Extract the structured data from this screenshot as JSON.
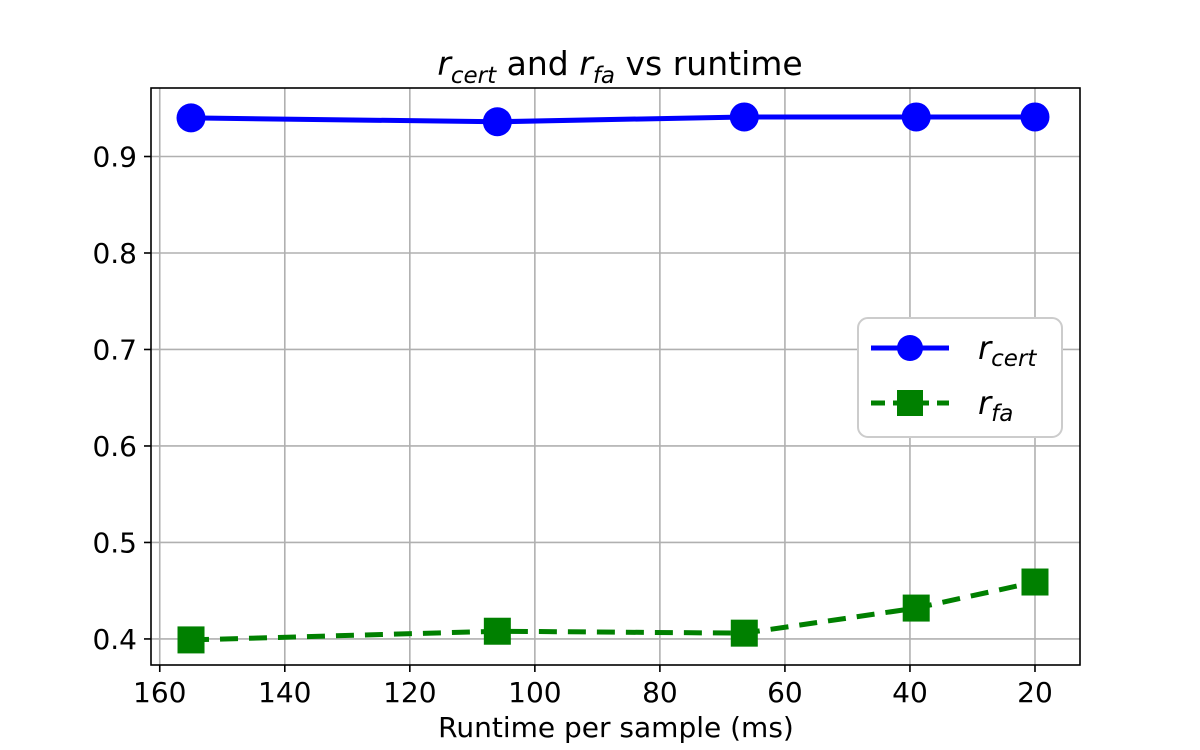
{
  "figure": {
    "background": "#ffffff"
  },
  "chart_data": {
    "type": "line",
    "title": "r_cert and r_fa vs runtime",
    "title_segments": [
      {
        "text": "r",
        "italic": true,
        "sub": false
      },
      {
        "text": "cert",
        "italic": true,
        "sub": true
      },
      {
        "text": " and ",
        "italic": false,
        "sub": false
      },
      {
        "text": "r",
        "italic": true,
        "sub": false
      },
      {
        "text": "fa",
        "italic": true,
        "sub": true
      },
      {
        "text": " vs runtime",
        "italic": false,
        "sub": false
      }
    ],
    "xlabel": "Runtime per sample (ms)",
    "ylabel": "",
    "x": [
      155,
      106,
      66.5,
      39,
      20
    ],
    "series": [
      {
        "name": "r_cert",
        "label_plain": "r_cert",
        "label_segments": [
          {
            "text": "r",
            "italic": true,
            "sub": false
          },
          {
            "text": "cert",
            "italic": true,
            "sub": true
          }
        ],
        "color": "#0000ff",
        "linestyle": "solid",
        "marker": "circle",
        "values": [
          0.94,
          0.936,
          0.941,
          0.941,
          0.941
        ]
      },
      {
        "name": "r_fa",
        "label_plain": "r_fa",
        "label_segments": [
          {
            "text": "r",
            "italic": true,
            "sub": false
          },
          {
            "text": "fa",
            "italic": true,
            "sub": true
          }
        ],
        "color": "#008000",
        "linestyle": "dashed",
        "marker": "square",
        "values": [
          0.399,
          0.408,
          0.406,
          0.432,
          0.459
        ]
      }
    ],
    "x_ticks": {
      "values": [
        160,
        140,
        120,
        100,
        80,
        60,
        40,
        20
      ],
      "labels": [
        "160",
        "140",
        "120",
        "100",
        "80",
        "60",
        "40",
        "20"
      ]
    },
    "y_ticks": {
      "values": [
        0.4,
        0.5,
        0.6,
        0.7,
        0.8,
        0.9
      ],
      "labels": [
        "0.4",
        "0.5",
        "0.6",
        "0.7",
        "0.8",
        "0.9"
      ]
    },
    "xlim": [
      161.4,
      12.8
    ],
    "ylim": [
      0.373,
      0.971
    ],
    "x_axis_reversed": true,
    "grid": true,
    "legend_position": "center right",
    "colors": {
      "grid": "#b0b0b0",
      "spine": "#000000",
      "legend_border": "#cccccc",
      "legend_background": "#ffffff",
      "text": "#000000"
    }
  }
}
